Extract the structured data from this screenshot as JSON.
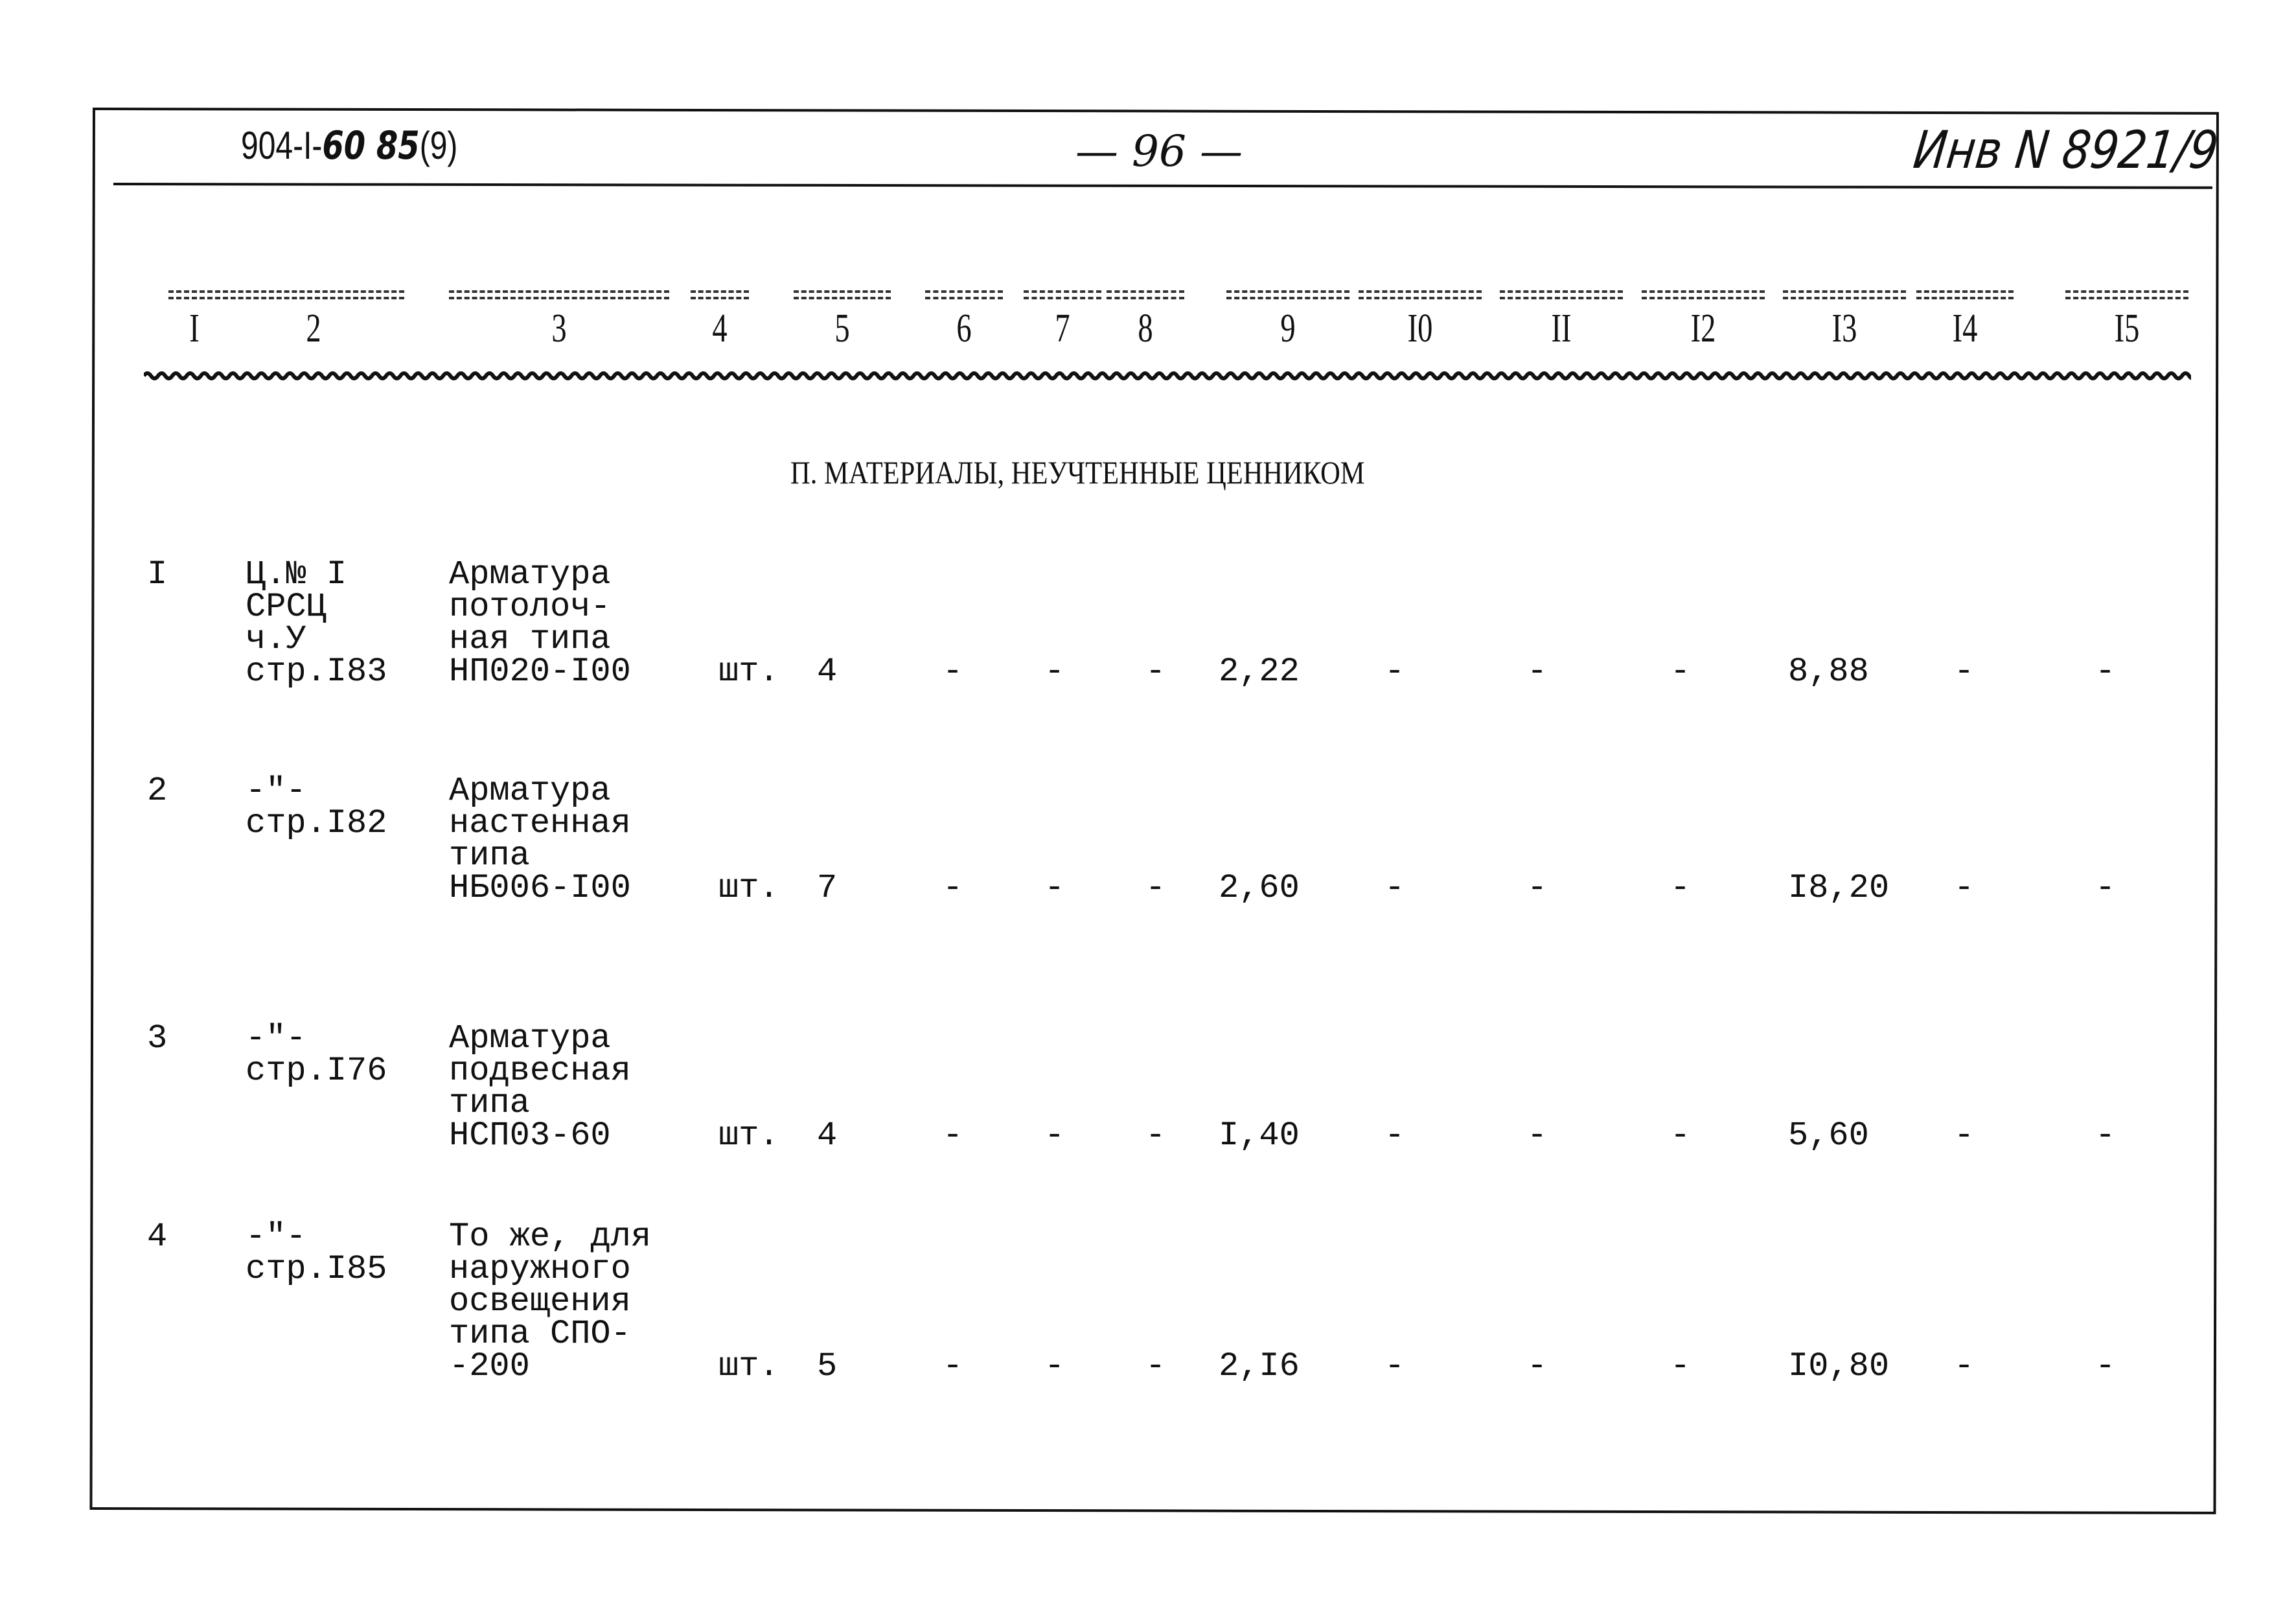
{
  "header": {
    "code_prefix": "904-I-",
    "code_hand": "60 85",
    "code_suffix": "(9)",
    "page": "— 96 —",
    "inventory": "Инв N 8921/9"
  },
  "columns": [
    "I",
    "2",
    "3",
    "4",
    "5",
    "6",
    "7",
    "8",
    "9",
    "I0",
    "II",
    "I2",
    "I3",
    "I4",
    "I5"
  ],
  "section_title": "П. МАТЕРИАЛЫ, НЕУЧТЕННЫЕ ЦЕННИКОМ",
  "rows": [
    {
      "num": "I",
      "ref": [
        "Ц.№ I",
        "СРСЦ",
        "ч.У",
        "стр.I83"
      ],
      "name": [
        "Арматура",
        "потолоч-",
        "ная типа",
        "НП020-I00"
      ],
      "unit": "шт.",
      "qty": "4",
      "c6": "-",
      "c7": "-",
      "c8": "-",
      "price": "2,22",
      "c10": "-",
      "c11": "-",
      "c12": "-",
      "total": "8,88",
      "c14": "-",
      "c15": "-"
    },
    {
      "num": "2",
      "ref": [
        "-\"-",
        "стр.I82"
      ],
      "name": [
        "Арматура",
        "настенная",
        "типа",
        "НБ006-I00"
      ],
      "unit": "шт.",
      "qty": "7",
      "c6": "-",
      "c7": "-",
      "c8": "-",
      "price": "2,60",
      "c10": "-",
      "c11": "-",
      "c12": "-",
      "total": "I8,20",
      "c14": "-",
      "c15": "-"
    },
    {
      "num": "3",
      "ref": [
        "-\"-",
        "стр.I76"
      ],
      "name": [
        "Арматура",
        "подвесная",
        "типа",
        "НСП03-60"
      ],
      "unit": "шт.",
      "qty": "4",
      "c6": "-",
      "c7": "-",
      "c8": "-",
      "price": "I,40",
      "c10": "-",
      "c11": "-",
      "c12": "-",
      "total": "5,60",
      "c14": "-",
      "c15": "-"
    },
    {
      "num": "4",
      "ref": [
        "-\"-",
        "стр.I85"
      ],
      "name": [
        "То же, для",
        "наружного",
        "освещения",
        "типа СПО-",
        "-200"
      ],
      "unit": "шт.",
      "qty": "5",
      "c6": "-",
      "c7": "-",
      "c8": "-",
      "price": "2,I6",
      "c10": "-",
      "c11": "-",
      "c12": "-",
      "total": "I0,80",
      "c14": "-",
      "c15": "-"
    }
  ]
}
